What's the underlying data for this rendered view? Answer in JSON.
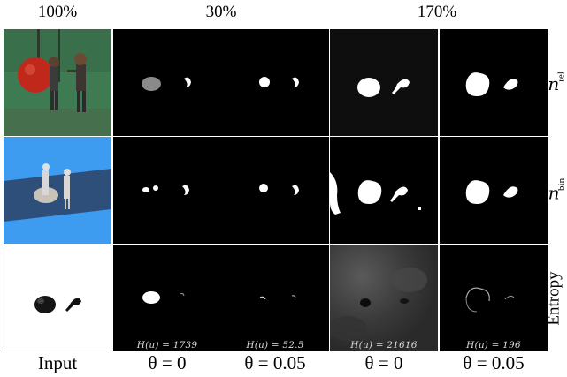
{
  "headers": {
    "h100": "100%",
    "h30": "30%",
    "h170": "170%"
  },
  "row_labels": {
    "u_rel": {
      "var": "u",
      "sub": "rel"
    },
    "u_bin": {
      "var": "u",
      "sub": "bin"
    },
    "entropy": "Entropy"
  },
  "entropy_values": {
    "c1": "H(u) = 1739",
    "c2": "H(u) = 52.5",
    "c3": "H(u) = 21616",
    "c4": "H(u) = 196"
  },
  "columns": {
    "input": "Input",
    "c1": "θ = 0",
    "c2": "θ = 0.05",
    "c3": "θ = 0",
    "c4": "θ = 0.05"
  },
  "colors": {
    "green_scene": "#3f7b52",
    "blue_scene": "#3d9cf0",
    "ball": "#c0281c"
  }
}
